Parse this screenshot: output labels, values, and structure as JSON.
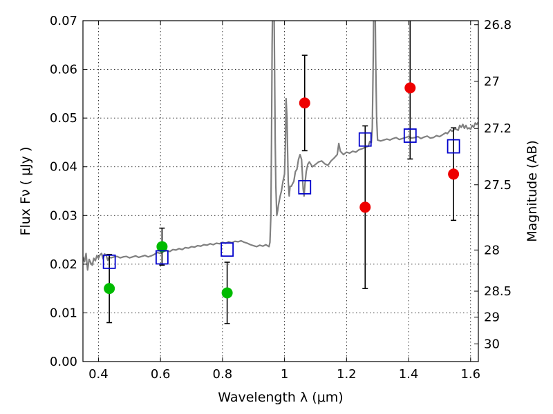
{
  "chart_data": {
    "type": "scatter",
    "xlabel": "Wavelength  λ (μm)",
    "ylabel": "Flux  Fν  ( μJy )",
    "y2label": "Magnitude (AB)",
    "xlim": [
      0.35,
      1.625
    ],
    "ylim": [
      0.0,
      0.07
    ],
    "grid": true,
    "x_ticks": [
      {
        "value": 0.4,
        "label": "0.4"
      },
      {
        "value": 0.6,
        "label": "0.6"
      },
      {
        "value": 0.8,
        "label": "0.8"
      },
      {
        "value": 1.0,
        "label": "1"
      },
      {
        "value": 1.2,
        "label": "1.2"
      },
      {
        "value": 1.4,
        "label": "1.4"
      },
      {
        "value": 1.6,
        "label": "1.6"
      }
    ],
    "y_ticks": [
      {
        "value": 0.0,
        "label": "0.00"
      },
      {
        "value": 0.01,
        "label": "0.01"
      },
      {
        "value": 0.02,
        "label": "0.02"
      },
      {
        "value": 0.03,
        "label": "0.03"
      },
      {
        "value": 0.04,
        "label": "0.04"
      },
      {
        "value": 0.05,
        "label": "0.05"
      },
      {
        "value": 0.06,
        "label": "0.06"
      },
      {
        "value": 0.07,
        "label": "0.07"
      }
    ],
    "y2_ticks": [
      {
        "value": 26.8,
        "label": "26.8"
      },
      {
        "value": 27.0,
        "label": "27"
      },
      {
        "value": 27.2,
        "label": "27.2"
      },
      {
        "value": 27.5,
        "label": "27.5"
      },
      {
        "value": 28.0,
        "label": "28"
      },
      {
        "value": 28.5,
        "label": "28.5"
      },
      {
        "value": 29.0,
        "label": "29"
      },
      {
        "value": 30.0,
        "label": "30"
      }
    ],
    "series": [
      {
        "kind": "line",
        "color": "#808080",
        "points": [
          [
            0.35,
            0.0215
          ],
          [
            0.355,
            0.0205
          ],
          [
            0.36,
            0.0222
          ],
          [
            0.365,
            0.0188
          ],
          [
            0.37,
            0.021
          ],
          [
            0.375,
            0.0203
          ],
          [
            0.38,
            0.0198
          ],
          [
            0.385,
            0.0212
          ],
          [
            0.39,
            0.0207
          ],
          [
            0.395,
            0.0218
          ],
          [
            0.4,
            0.0212
          ],
          [
            0.405,
            0.0219
          ],
          [
            0.41,
            0.0222
          ],
          [
            0.415,
            0.0211
          ],
          [
            0.42,
            0.0221
          ],
          [
            0.425,
            0.0218
          ],
          [
            0.43,
            0.0208
          ],
          [
            0.435,
            0.0215
          ],
          [
            0.44,
            0.0213
          ],
          [
            0.45,
            0.0215
          ],
          [
            0.46,
            0.0216
          ],
          [
            0.47,
            0.0213
          ],
          [
            0.48,
            0.0215
          ],
          [
            0.49,
            0.0216
          ],
          [
            0.5,
            0.0213
          ],
          [
            0.51,
            0.0215
          ],
          [
            0.52,
            0.0217
          ],
          [
            0.53,
            0.0214
          ],
          [
            0.54,
            0.0216
          ],
          [
            0.55,
            0.0218
          ],
          [
            0.56,
            0.0215
          ],
          [
            0.57,
            0.0217
          ],
          [
            0.58,
            0.022
          ],
          [
            0.59,
            0.0224
          ],
          [
            0.6,
            0.0222
          ],
          [
            0.61,
            0.0226
          ],
          [
            0.62,
            0.0228
          ],
          [
            0.63,
            0.0226
          ],
          [
            0.64,
            0.023
          ],
          [
            0.65,
            0.0229
          ],
          [
            0.66,
            0.0232
          ],
          [
            0.67,
            0.023
          ],
          [
            0.68,
            0.0234
          ],
          [
            0.69,
            0.0233
          ],
          [
            0.7,
            0.0236
          ],
          [
            0.71,
            0.0235
          ],
          [
            0.72,
            0.0238
          ],
          [
            0.73,
            0.0237
          ],
          [
            0.74,
            0.024
          ],
          [
            0.75,
            0.0239
          ],
          [
            0.76,
            0.0242
          ],
          [
            0.77,
            0.024
          ],
          [
            0.78,
            0.0243
          ],
          [
            0.79,
            0.0242
          ],
          [
            0.8,
            0.0245
          ],
          [
            0.81,
            0.0243
          ],
          [
            0.82,
            0.0246
          ],
          [
            0.83,
            0.0244
          ],
          [
            0.84,
            0.0247
          ],
          [
            0.85,
            0.0246
          ],
          [
            0.86,
            0.0248
          ],
          [
            0.87,
            0.0245
          ],
          [
            0.88,
            0.0243
          ],
          [
            0.89,
            0.024
          ],
          [
            0.9,
            0.0238
          ],
          [
            0.91,
            0.0236
          ],
          [
            0.92,
            0.0239
          ],
          [
            0.93,
            0.0237
          ],
          [
            0.94,
            0.024
          ],
          [
            0.945,
            0.0238
          ],
          [
            0.95,
            0.0236
          ],
          [
            0.953,
            0.0245
          ],
          [
            0.956,
            0.03
          ],
          [
            0.958,
            0.045
          ],
          [
            0.96,
            0.065
          ],
          [
            0.962,
            0.075
          ],
          [
            0.966,
            0.075
          ],
          [
            0.968,
            0.06
          ],
          [
            0.97,
            0.045
          ],
          [
            0.972,
            0.036
          ],
          [
            0.975,
            0.03
          ],
          [
            0.978,
            0.031
          ],
          [
            0.98,
            0.032
          ],
          [
            0.983,
            0.033
          ],
          [
            0.986,
            0.034
          ],
          [
            0.99,
            0.035
          ],
          [
            0.995,
            0.037
          ],
          [
            1.0,
            0.0385
          ],
          [
            1.003,
            0.045
          ],
          [
            1.005,
            0.054
          ],
          [
            1.008,
            0.05
          ],
          [
            1.01,
            0.043
          ],
          [
            1.012,
            0.037
          ],
          [
            1.015,
            0.034
          ],
          [
            1.018,
            0.036
          ],
          [
            1.022,
            0.036
          ],
          [
            1.026,
            0.0365
          ],
          [
            1.03,
            0.037
          ],
          [
            1.035,
            0.039
          ],
          [
            1.04,
            0.0395
          ],
          [
            1.045,
            0.0415
          ],
          [
            1.05,
            0.0425
          ],
          [
            1.055,
            0.0415
          ],
          [
            1.058,
            0.038
          ],
          [
            1.06,
            0.0355
          ],
          [
            1.063,
            0.034
          ],
          [
            1.066,
            0.0365
          ],
          [
            1.07,
            0.039
          ],
          [
            1.075,
            0.0405
          ],
          [
            1.08,
            0.041
          ],
          [
            1.085,
            0.0405
          ],
          [
            1.09,
            0.04
          ],
          [
            1.1,
            0.0405
          ],
          [
            1.11,
            0.041
          ],
          [
            1.12,
            0.0412
          ],
          [
            1.13,
            0.0406
          ],
          [
            1.14,
            0.0403
          ],
          [
            1.15,
            0.0412
          ],
          [
            1.16,
            0.0418
          ],
          [
            1.17,
            0.0425
          ],
          [
            1.175,
            0.0448
          ],
          [
            1.18,
            0.0432
          ],
          [
            1.19,
            0.0425
          ],
          [
            1.2,
            0.043
          ],
          [
            1.21,
            0.0428
          ],
          [
            1.22,
            0.0432
          ],
          [
            1.23,
            0.043
          ],
          [
            1.24,
            0.0435
          ],
          [
            1.25,
            0.0437
          ],
          [
            1.26,
            0.044
          ],
          [
            1.27,
            0.0442
          ],
          [
            1.275,
            0.0452
          ],
          [
            1.28,
            0.045
          ],
          [
            1.283,
            0.048
          ],
          [
            1.286,
            0.062
          ],
          [
            1.288,
            0.075
          ],
          [
            1.292,
            0.075
          ],
          [
            1.294,
            0.062
          ],
          [
            1.297,
            0.05
          ],
          [
            1.3,
            0.0455
          ],
          [
            1.31,
            0.0453
          ],
          [
            1.32,
            0.0455
          ],
          [
            1.33,
            0.0457
          ],
          [
            1.34,
            0.0455
          ],
          [
            1.35,
            0.0458
          ],
          [
            1.36,
            0.046
          ],
          [
            1.37,
            0.0456
          ],
          [
            1.38,
            0.0458
          ],
          [
            1.39,
            0.046
          ],
          [
            1.4,
            0.0462
          ],
          [
            1.41,
            0.0459
          ],
          [
            1.42,
            0.046
          ],
          [
            1.43,
            0.0462
          ],
          [
            1.44,
            0.0458
          ],
          [
            1.45,
            0.0461
          ],
          [
            1.46,
            0.0463
          ],
          [
            1.47,
            0.0459
          ],
          [
            1.48,
            0.046
          ],
          [
            1.49,
            0.0464
          ],
          [
            1.5,
            0.0462
          ],
          [
            1.51,
            0.0466
          ],
          [
            1.52,
            0.047
          ],
          [
            1.525,
            0.0468
          ],
          [
            1.53,
            0.0472
          ],
          [
            1.535,
            0.0476
          ],
          [
            1.54,
            0.0473
          ],
          [
            1.55,
            0.0478
          ],
          [
            1.56,
            0.0475
          ],
          [
            1.565,
            0.0485
          ],
          [
            1.57,
            0.0481
          ],
          [
            1.575,
            0.0487
          ],
          [
            1.58,
            0.0479
          ],
          [
            1.585,
            0.0485
          ],
          [
            1.59,
            0.0478
          ],
          [
            1.595,
            0.048
          ],
          [
            1.6,
            0.0477
          ],
          [
            1.605,
            0.0485
          ],
          [
            1.61,
            0.0481
          ],
          [
            1.615,
            0.049
          ],
          [
            1.62,
            0.0487
          ],
          [
            1.625,
            0.0492
          ]
        ]
      },
      {
        "kind": "points",
        "marker": "circle",
        "color": "#00bb00",
        "points": [
          {
            "x": 0.435,
            "y": 0.015,
            "err": 0.007
          },
          {
            "x": 0.605,
            "y": 0.0236,
            "err": 0.0038
          },
          {
            "x": 0.815,
            "y": 0.0141,
            "err": 0.0063
          }
        ]
      },
      {
        "kind": "points",
        "marker": "circle",
        "color": "#ee0000",
        "points": [
          {
            "x": 1.065,
            "y": 0.0531,
            "err": 0.0098
          },
          {
            "x": 1.26,
            "y": 0.0317,
            "err": 0.0167
          },
          {
            "x": 1.405,
            "y": 0.0562,
            "err": 0.0146
          },
          {
            "x": 1.545,
            "y": 0.0385,
            "err": 0.0095
          }
        ]
      },
      {
        "kind": "points",
        "marker": "square",
        "color": "#0000cc",
        "points": [
          {
            "x": 0.435,
            "y": 0.0205
          },
          {
            "x": 0.605,
            "y": 0.0214
          },
          {
            "x": 0.815,
            "y": 0.023
          },
          {
            "x": 1.065,
            "y": 0.0358
          },
          {
            "x": 1.26,
            "y": 0.0456
          },
          {
            "x": 1.405,
            "y": 0.0464
          },
          {
            "x": 1.545,
            "y": 0.0442
          }
        ]
      }
    ]
  }
}
